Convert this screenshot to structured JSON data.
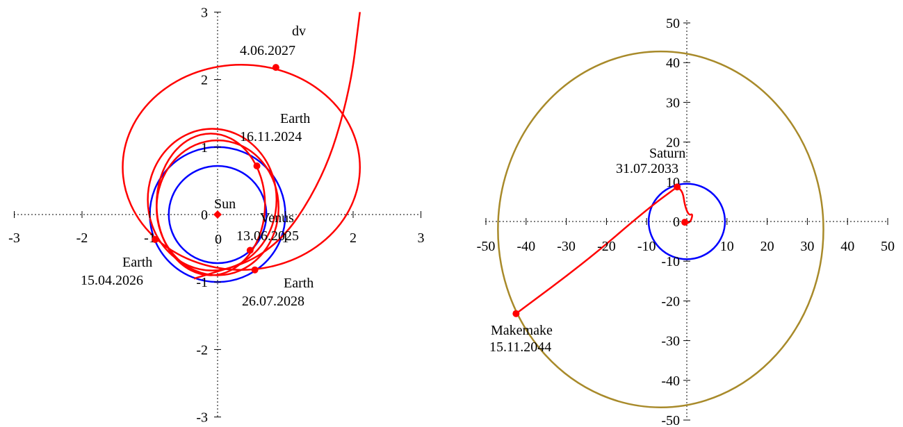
{
  "chart_data": [
    {
      "type": "scatter",
      "title": "",
      "xlabel": "",
      "ylabel": "",
      "xlim": [
        -3,
        3
      ],
      "ylim": [
        -3,
        3
      ],
      "grid": false,
      "x_ticks": [
        -3,
        -2,
        -1,
        0,
        1,
        2,
        3
      ],
      "y_ticks": [
        -3,
        -2,
        -1,
        0,
        1,
        2,
        3
      ],
      "x_tick_labels": [
        "-3",
        "-2",
        "-1",
        "0",
        "1",
        "2",
        "3"
      ],
      "y_tick_labels": [
        "-3",
        "-2",
        "-1",
        "0",
        "1",
        "2",
        "3"
      ],
      "colors": {
        "trajectory": "#ff0000",
        "planet_orbit": "#0000ff",
        "marker": "#ff0000"
      },
      "orbits": [
        {
          "body": "Earth",
          "radius": 1.0,
          "color": "#0000ff"
        },
        {
          "body": "Venus",
          "radius": 0.72,
          "color": "#0000ff"
        }
      ],
      "trajectory_segments": [
        {
          "kind": "ellipse",
          "cx": -0.1,
          "cy": 0.15,
          "rx": 0.8,
          "ry": 1.05
        },
        {
          "kind": "ellipse",
          "cx": -0.08,
          "cy": 0.22,
          "rx": 0.95,
          "ry": 1.05
        },
        {
          "kind": "ellipse",
          "cx": 0.0,
          "cy": 0.1,
          "rx": 0.9,
          "ry": 1.0
        },
        {
          "kind": "ellipse",
          "cx": 0.35,
          "cy": 0.7,
          "rx": 1.75,
          "ry": 1.52
        },
        {
          "kind": "path",
          "points": [
            [
              -0.35,
              -0.95
            ],
            [
              0.8,
              -0.6
            ],
            [
              1.55,
              0.5
            ],
            [
              1.95,
              1.8
            ],
            [
              2.1,
              3.0
            ]
          ]
        }
      ],
      "points": [
        {
          "name": "Sun",
          "x": 0.0,
          "y": 0.0
        },
        {
          "name": "Earth",
          "date": "16.11.2024",
          "x": 0.58,
          "y": 0.72
        },
        {
          "name": "Venus",
          "date": "13.06.2025",
          "x": 0.48,
          "y": -0.53
        },
        {
          "name": "Earth",
          "date": "15.04.2026",
          "x": -0.92,
          "y": -0.37
        },
        {
          "name": "dv",
          "date": "4.06.2027",
          "x": 0.86,
          "y": 2.18
        },
        {
          "name": "Earth",
          "date": "26.07.2028",
          "x": 0.55,
          "y": -0.82
        }
      ]
    },
    {
      "type": "scatter",
      "title": "",
      "xlabel": "",
      "ylabel": "",
      "xlim": [
        -50,
        50
      ],
      "ylim": [
        -50,
        50
      ],
      "grid": false,
      "x_ticks": [
        -50,
        -40,
        -30,
        -20,
        -10,
        0,
        10,
        20,
        30,
        40,
        50
      ],
      "y_ticks": [
        -50,
        -40,
        -30,
        -20,
        -10,
        0,
        10,
        20,
        30,
        40,
        50
      ],
      "x_tick_labels": [
        "-50",
        "-40",
        "-30",
        "-20",
        "-10",
        "0",
        "10",
        "20",
        "30",
        "40",
        "50"
      ],
      "y_tick_labels": [
        "-50",
        "-40",
        "-30",
        "-20",
        "-10",
        "0",
        "10",
        "20",
        "30",
        "40",
        "50"
      ],
      "colors": {
        "trajectory": "#ff0000",
        "planet_orbit": "#0000ff",
        "dwarf_orbit": "#a88a2a",
        "marker": "#ff0000"
      },
      "orbits": [
        {
          "body": "Saturn",
          "cx": 0,
          "cy": 0,
          "rx": 9.5,
          "ry": 9.5,
          "color": "#0000ff"
        },
        {
          "body": "Makemake",
          "cx": -6.5,
          "cy": -2,
          "rx": 40.5,
          "ry": 44.8,
          "color": "#a88a2a"
        }
      ],
      "trajectory_segments": [
        {
          "kind": "path",
          "points": [
            [
              -42.5,
              -23.2
            ],
            [
              -25,
              -10
            ],
            [
              -10,
              3
            ],
            [
              -2.4,
              8.7
            ]
          ]
        },
        {
          "kind": "path",
          "points": [
            [
              -2.4,
              8.7
            ],
            [
              -1.0,
              7.5
            ],
            [
              -0.5,
              4.0
            ],
            [
              0.5,
              1.5
            ],
            [
              1.5,
              2.0
            ],
            [
              1.0,
              0.0
            ],
            [
              0.0,
              -0.5
            ],
            [
              -1.0,
              0.5
            ]
          ]
        }
      ],
      "points": [
        {
          "name": "Saturn",
          "date": "31.07.2033",
          "x": -2.4,
          "y": 8.7
        },
        {
          "name": "Makemake",
          "date": "15.11.2044",
          "x": -42.5,
          "y": -23.2
        },
        {
          "name": "",
          "x": -0.5,
          "y": -0.2
        }
      ]
    }
  ]
}
